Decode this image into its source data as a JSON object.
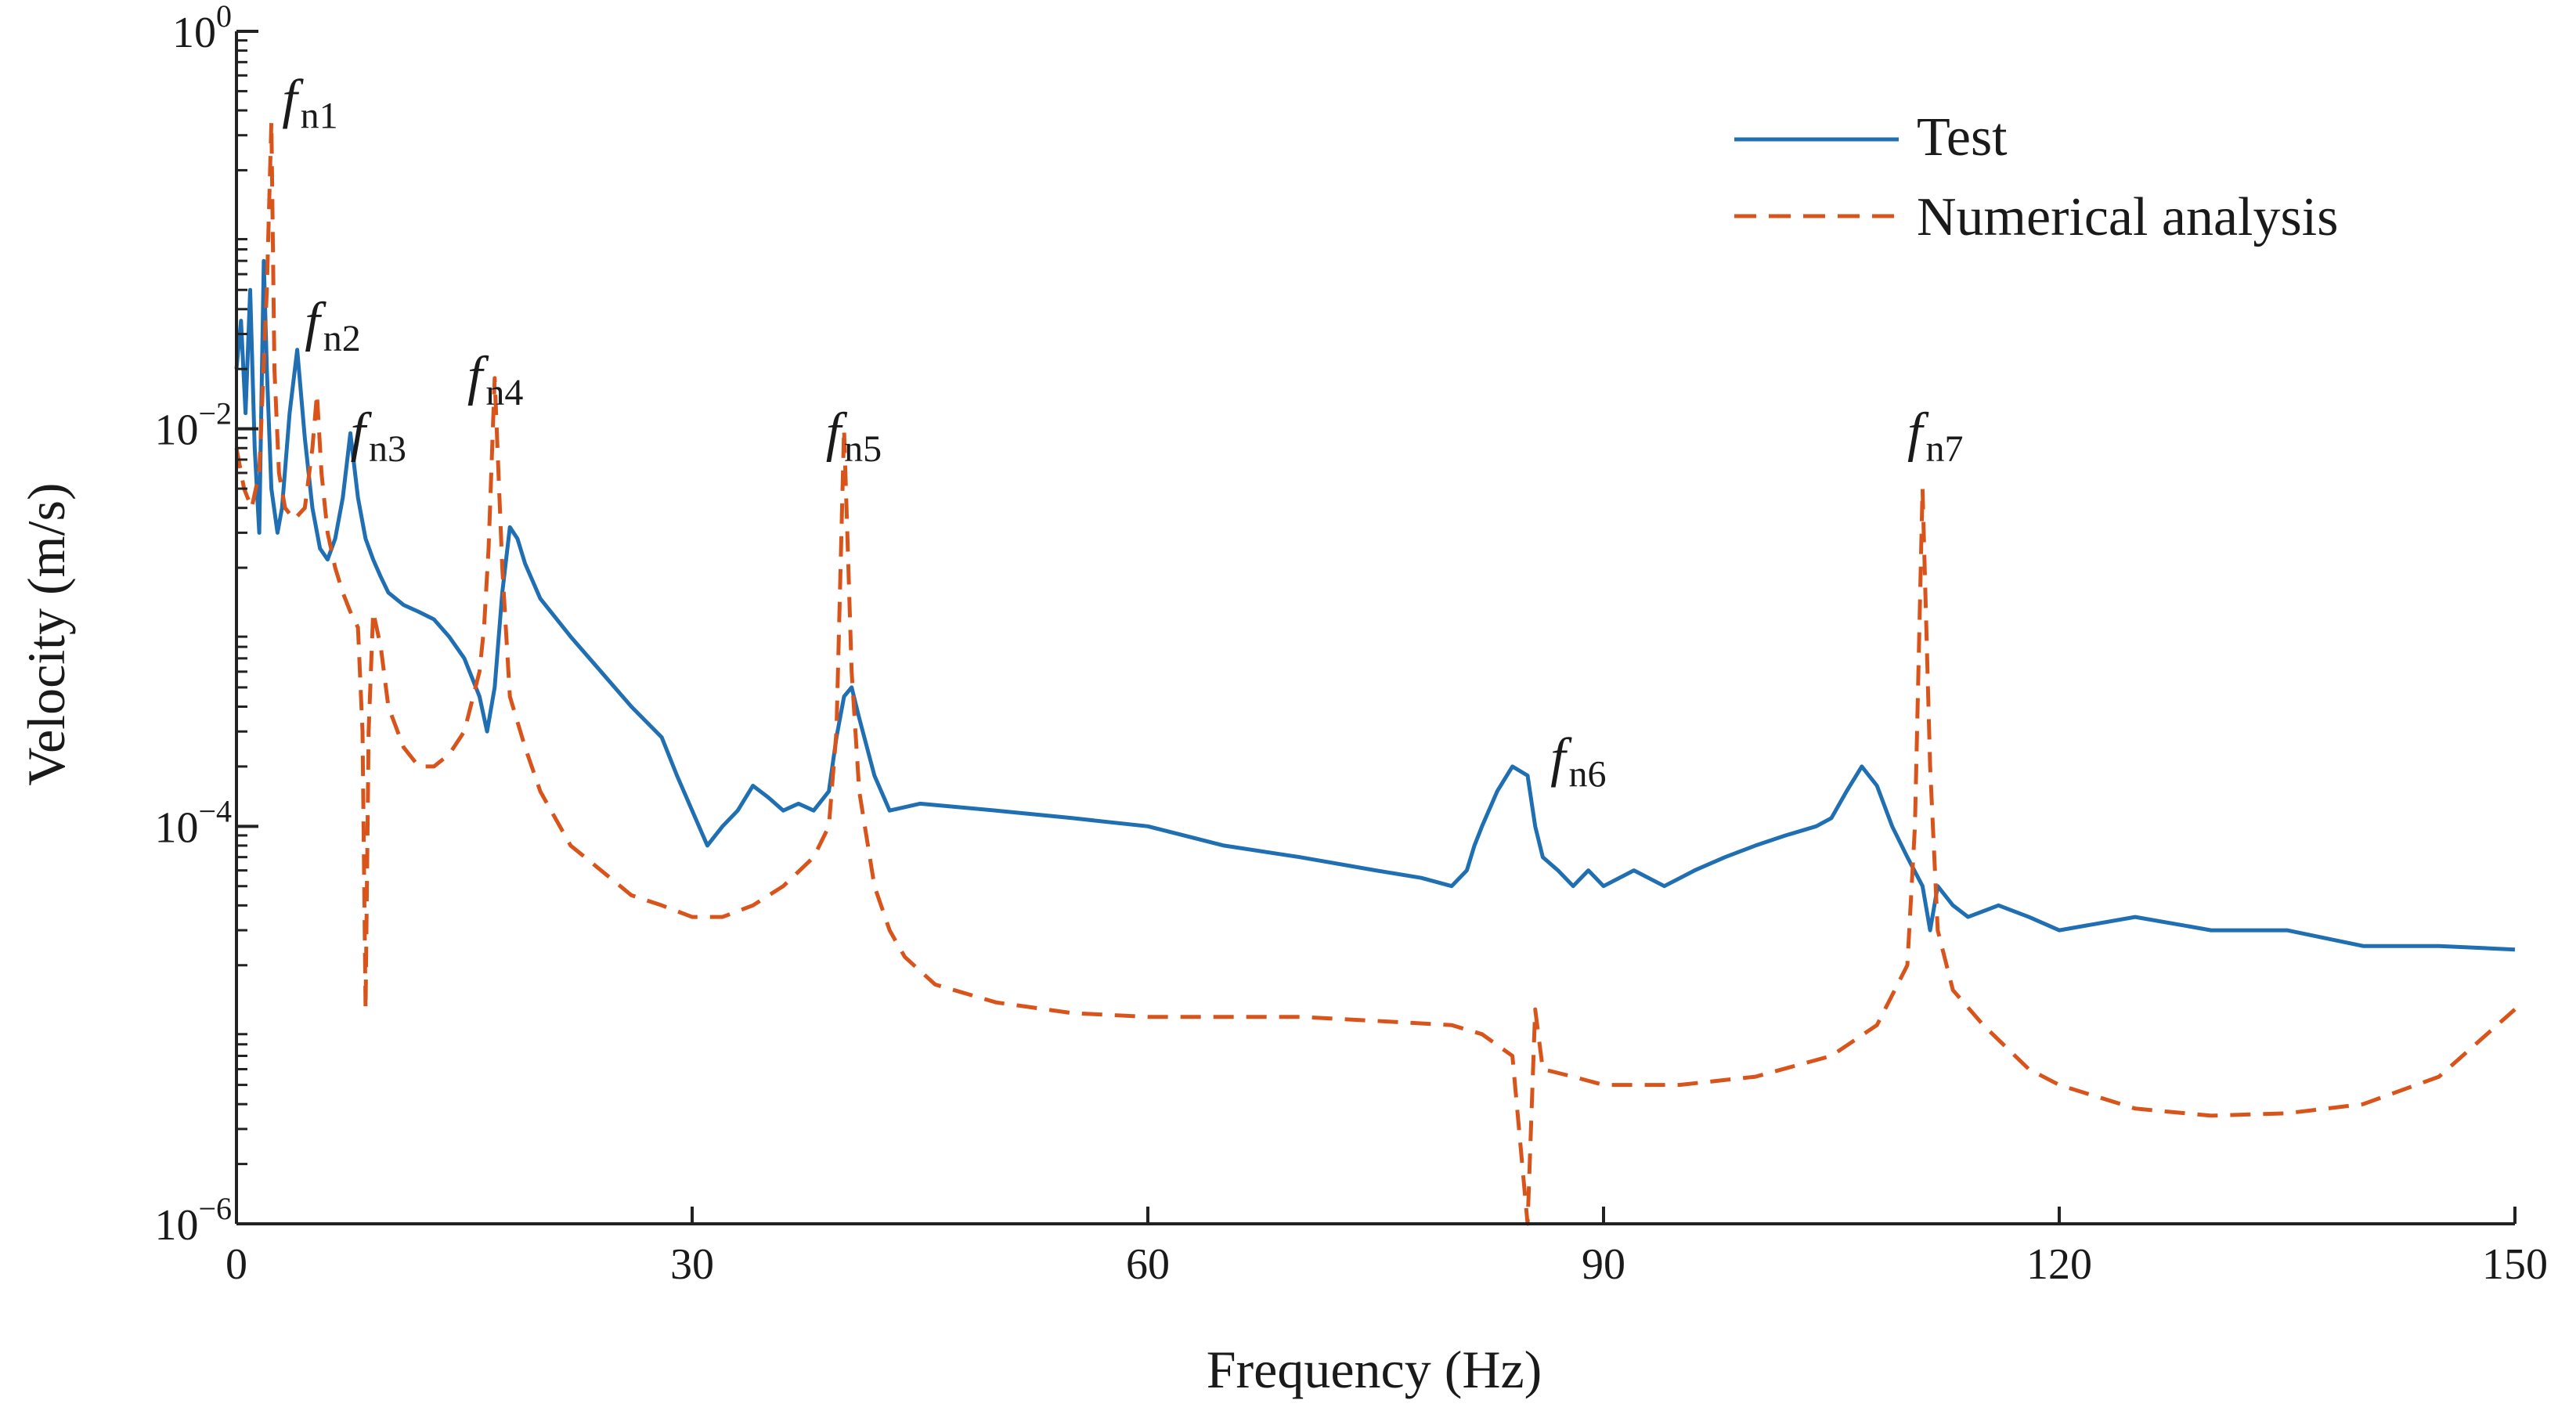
{
  "chart_data": {
    "type": "line",
    "title": "",
    "xlabel": "Frequency (Hz)",
    "ylabel": "Velocity (m/s)",
    "xlim": [
      0,
      150
    ],
    "ylim": [
      1e-06,
      1
    ],
    "yscale": "log",
    "grid": false,
    "legend_position": "top-right",
    "x_ticks": [
      {
        "value": 0,
        "label": "0"
      },
      {
        "value": 30,
        "label": "30"
      },
      {
        "value": 60,
        "label": "60"
      },
      {
        "value": 90,
        "label": "90"
      },
      {
        "value": 120,
        "label": "120"
      },
      {
        "value": 150,
        "label": "150"
      }
    ],
    "y_ticks": [
      {
        "value": 1,
        "base": "10",
        "exp": "0"
      },
      {
        "value": 0.01,
        "base": "10",
        "exp": "−2"
      },
      {
        "value": 0.0001,
        "base": "10",
        "exp": "−4"
      },
      {
        "value": 1e-06,
        "base": "10",
        "exp": "−6"
      }
    ],
    "series": [
      {
        "name": "Test",
        "color": "#1f6fb2",
        "style": "solid",
        "x": [
          0,
          0.3,
          0.6,
          0.9,
          1.2,
          1.5,
          1.8,
          2.0,
          2.3,
          2.7,
          3.0,
          3.5,
          4.0,
          4.5,
          5.0,
          5.5,
          6.0,
          6.5,
          7.0,
          7.5,
          8.0,
          8.5,
          9.0,
          9.5,
          10,
          11,
          12,
          13,
          14,
          15,
          16,
          16.5,
          17,
          17.5,
          18,
          18.5,
          19,
          20,
          22,
          24,
          26,
          28,
          29,
          30,
          31,
          32,
          33,
          34,
          35,
          36,
          37,
          38,
          39,
          39.5,
          40,
          40.5,
          41,
          42,
          43,
          45,
          50,
          55,
          60,
          65,
          70,
          75,
          78,
          80,
          81,
          81.5,
          82,
          83,
          84,
          85,
          85.5,
          86,
          87,
          88,
          89,
          90,
          92,
          94,
          96,
          98,
          100,
          102,
          104,
          105,
          106,
          107,
          108,
          109,
          110,
          111,
          111.5,
          112,
          113,
          114,
          116,
          118,
          120,
          125,
          130,
          135,
          140,
          145,
          150
        ],
        "y": [
          0.02,
          0.035,
          0.012,
          0.05,
          0.008,
          0.003,
          0.07,
          0.02,
          0.005,
          0.003,
          0.004,
          0.012,
          0.025,
          0.009,
          0.004,
          0.0025,
          0.0022,
          0.0028,
          0.0045,
          0.0095,
          0.0045,
          0.0028,
          0.0022,
          0.0018,
          0.0015,
          0.0013,
          0.0012,
          0.0011,
          0.0009,
          0.0007,
          0.00045,
          0.0003,
          0.0005,
          0.0015,
          0.0032,
          0.0028,
          0.0021,
          0.0014,
          0.0009,
          0.0006,
          0.0004,
          0.00028,
          0.00018,
          0.00012,
          8e-05,
          0.0001,
          0.00012,
          0.00016,
          0.00014,
          0.00012,
          0.00013,
          0.00012,
          0.00015,
          0.00028,
          0.00045,
          0.0005,
          0.00035,
          0.00018,
          0.00012,
          0.00013,
          0.00012,
          0.00011,
          0.0001,
          8e-05,
          7e-05,
          6e-05,
          5.5e-05,
          5e-05,
          6e-05,
          8e-05,
          0.0001,
          0.00015,
          0.0002,
          0.00018,
          0.0001,
          7e-05,
          6e-05,
          5e-05,
          6e-05,
          5e-05,
          6e-05,
          5e-05,
          6e-05,
          7e-05,
          8e-05,
          9e-05,
          0.0001,
          0.00011,
          0.00015,
          0.0002,
          0.00016,
          0.0001,
          7e-05,
          5e-05,
          3e-05,
          5e-05,
          4e-05,
          3.5e-05,
          4e-05,
          3.5e-05,
          3e-05,
          3.5e-05,
          3e-05,
          3e-05,
          2.5e-05,
          2.5e-05,
          2.4e-05
        ]
      },
      {
        "name": "Numerical analysis",
        "color": "#d9541b",
        "style": "dashed",
        "x": [
          0,
          0.5,
          1.0,
          1.5,
          2.0,
          2.3,
          2.5,
          2.8,
          3.2,
          3.8,
          4.5,
          5.0,
          5.3,
          5.6,
          6.0,
          6.5,
          7.0,
          7.5,
          8.0,
          8.3,
          8.5,
          8.7,
          9.0,
          9.5,
          10,
          11,
          12,
          13,
          14,
          15,
          16,
          16.3,
          16.6,
          17.0,
          17.5,
          18,
          19,
          20,
          22,
          24,
          26,
          28,
          30,
          32,
          34,
          36,
          38,
          39,
          39.5,
          40.0,
          40.5,
          41,
          42,
          43,
          44,
          46,
          50,
          55,
          60,
          65,
          70,
          75,
          80,
          82,
          84,
          85,
          85.5,
          86,
          88,
          90,
          95,
          100,
          105,
          108,
          110,
          110.5,
          111,
          111.5,
          112,
          113,
          115,
          118,
          120,
          125,
          130,
          135,
          140,
          145,
          150
        ],
        "y": [
          0.008,
          0.005,
          0.004,
          0.006,
          0.05,
          0.35,
          0.02,
          0.006,
          0.004,
          0.0035,
          0.004,
          0.008,
          0.015,
          0.006,
          0.003,
          0.002,
          0.0015,
          0.0012,
          0.001,
          0.0003,
          1.2e-05,
          0.0003,
          0.0012,
          0.0008,
          0.0004,
          0.00025,
          0.0002,
          0.0002,
          0.00023,
          0.0003,
          0.0006,
          0.001,
          0.0025,
          0.018,
          0.002,
          0.00045,
          0.00025,
          0.00015,
          8e-05,
          6e-05,
          4.5e-05,
          4e-05,
          3.5e-05,
          3.5e-05,
          4e-05,
          5e-05,
          7e-05,
          0.0001,
          0.0003,
          0.01,
          0.0006,
          0.00015,
          5e-05,
          3e-05,
          2.2e-05,
          1.6e-05,
          1.3e-05,
          1.15e-05,
          1.1e-05,
          1.1e-05,
          1.1e-05,
          1.05e-05,
          1e-05,
          9e-06,
          7e-06,
          1e-06,
          1.2e-05,
          6e-06,
          5.5e-06,
          5e-06,
          5e-06,
          5.5e-06,
          7e-06,
          1e-05,
          2e-05,
          0.0001,
          0.005,
          0.0002,
          3e-05,
          1.5e-05,
          1e-05,
          6e-06,
          5e-06,
          3.8e-06,
          3.5e-06,
          3.6e-06,
          4e-06,
          5.5e-06,
          1.2e-05
        ]
      }
    ],
    "annotations": [
      {
        "base": "f",
        "sub": "n1",
        "x": 3.0,
        "y": 0.37
      },
      {
        "base": "f",
        "sub": "n2",
        "x": 4.5,
        "y": 0.028
      },
      {
        "base": "f",
        "sub": "n3",
        "x": 7.5,
        "y": 0.0078
      },
      {
        "base": "f",
        "sub": "n4",
        "x": 15.2,
        "y": 0.015
      },
      {
        "base": "f",
        "sub": "n5",
        "x": 38.8,
        "y": 0.0078
      },
      {
        "base": "f",
        "sub": "n6",
        "x": 86.5,
        "y": 0.00018
      },
      {
        "base": "f",
        "sub": "n7",
        "x": 110.0,
        "y": 0.0078
      }
    ]
  }
}
